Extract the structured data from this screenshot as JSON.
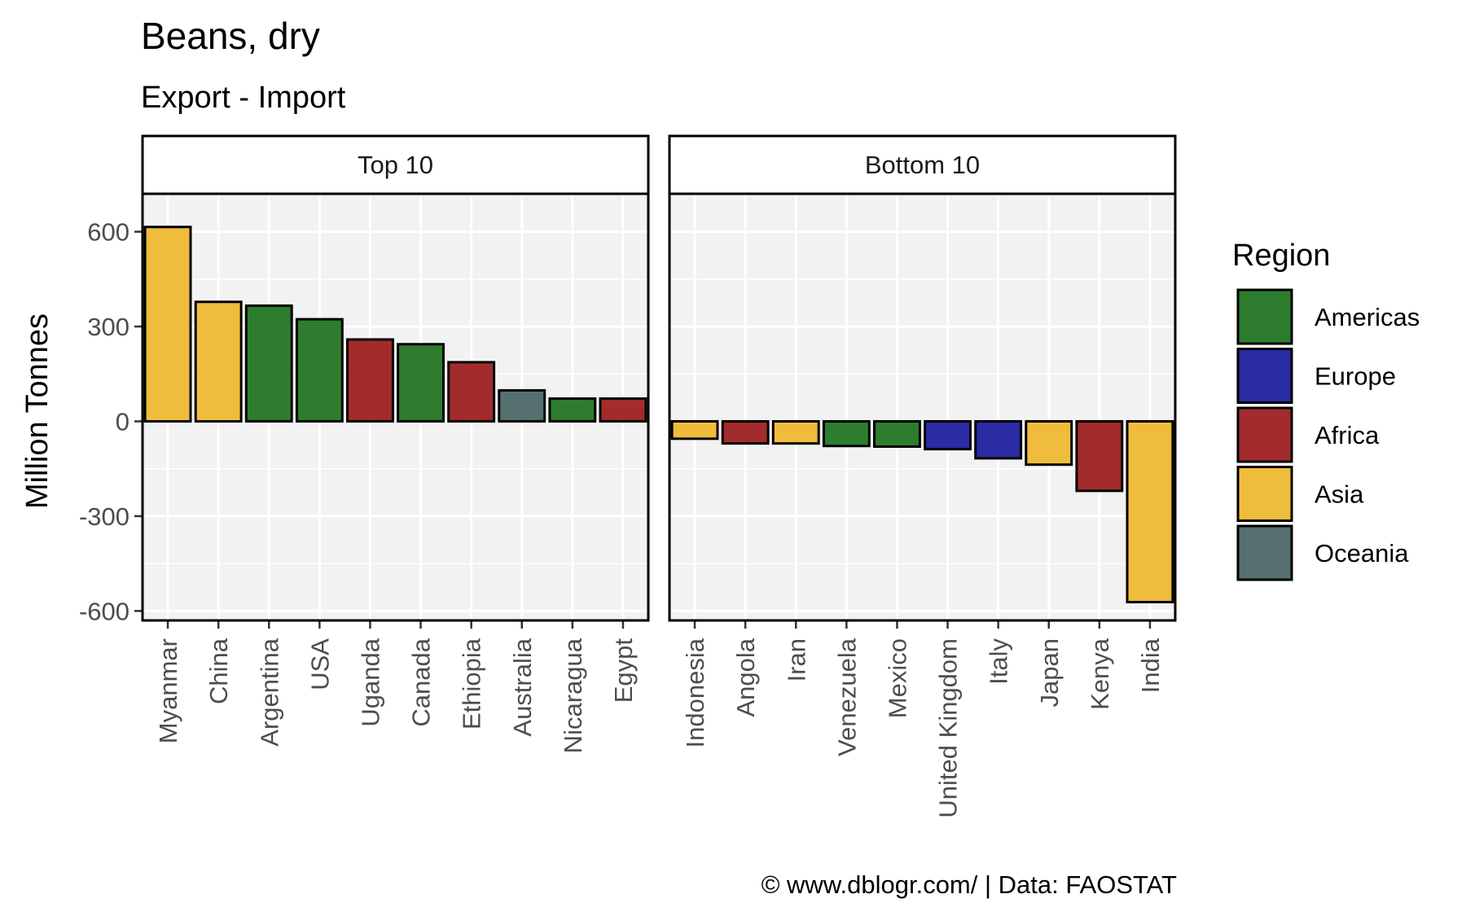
{
  "chart_data": {
    "type": "bar",
    "title": "Beans, dry",
    "subtitle": "Export - Import",
    "ylabel": "Million Tonnes",
    "ylim": [
      -630,
      720
    ],
    "yticks": [
      600,
      300,
      0,
      -300,
      -600
    ],
    "yticks_labels": [
      "600",
      "300",
      "0",
      "-300",
      "-600"
    ],
    "grid": true,
    "legend": {
      "title": "Region",
      "position": "right",
      "entries": [
        {
          "name": "Americas",
          "color": "#2e7d2e"
        },
        {
          "name": "Europe",
          "color": "#2b2ba3"
        },
        {
          "name": "Africa",
          "color": "#a32b2b"
        },
        {
          "name": "Asia",
          "color": "#f0bc3c"
        },
        {
          "name": "Oceania",
          "color": "#567070"
        }
      ]
    },
    "panels": [
      {
        "label": "Top 10",
        "categories": [
          "Myanmar",
          "China",
          "Argentina",
          "USA",
          "Uganda",
          "Canada",
          "Ethiopia",
          "Australia",
          "Nicaragua",
          "Egypt"
        ],
        "values": [
          615,
          378,
          366,
          323,
          259,
          244,
          187,
          98,
          72,
          72
        ],
        "regions": [
          "Asia",
          "Asia",
          "Americas",
          "Americas",
          "Africa",
          "Americas",
          "Africa",
          "Oceania",
          "Americas",
          "Africa"
        ]
      },
      {
        "label": "Bottom 10",
        "categories": [
          "Indonesia",
          "Angola",
          "Iran",
          "Venezuela",
          "Mexico",
          "United Kingdom",
          "Italy",
          "Japan",
          "Kenya",
          "India"
        ],
        "values": [
          -55,
          -70,
          -70,
          -78,
          -80,
          -88,
          -117,
          -137,
          -220,
          -572
        ],
        "regions": [
          "Asia",
          "Africa",
          "Asia",
          "Americas",
          "Americas",
          "Europe",
          "Europe",
          "Asia",
          "Africa",
          "Asia"
        ]
      }
    ],
    "caption": "© www.dblogr.com/  |  Data: FAOSTAT"
  }
}
